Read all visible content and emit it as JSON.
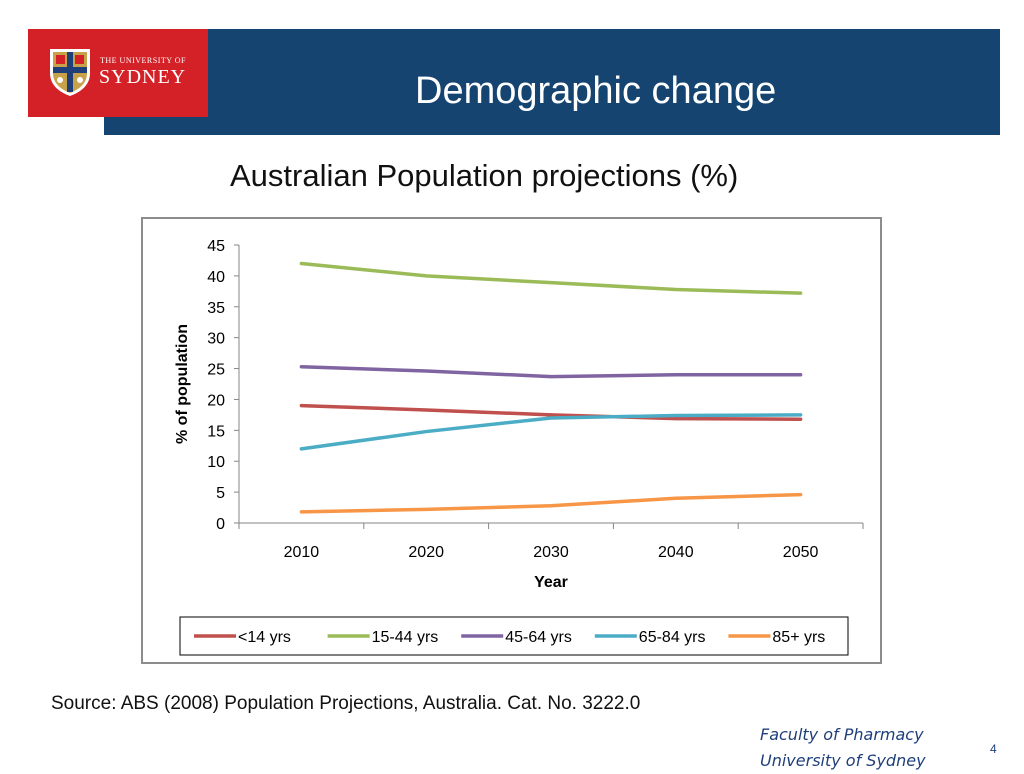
{
  "header": {
    "logo_small": "THE UNIVERSITY OF",
    "logo_big": "SYDNEY",
    "title": "Demographic change"
  },
  "chart_heading": "Australian Population projections (%)",
  "chart_data": {
    "type": "line",
    "title": "",
    "xlabel": "Year",
    "ylabel": "% of population",
    "x": [
      "2010",
      "2020",
      "2030",
      "2040",
      "2050"
    ],
    "ylim": [
      0,
      45
    ],
    "yticks": [
      0,
      5,
      10,
      15,
      20,
      25,
      30,
      35,
      40,
      45
    ],
    "grid": false,
    "legend": "bottom",
    "series": [
      {
        "name": "<14 yrs",
        "color": "#c0504d",
        "values": [
          19.0,
          18.3,
          17.5,
          16.9,
          16.8
        ]
      },
      {
        "name": "15-44 yrs",
        "color": "#9bbb59",
        "values": [
          42.0,
          40.0,
          38.9,
          37.8,
          37.2
        ]
      },
      {
        "name": "45-64 yrs",
        "color": "#8064a2",
        "values": [
          25.3,
          24.6,
          23.7,
          24.0,
          24.0
        ]
      },
      {
        "name": "65-84 yrs",
        "color": "#4bacc6",
        "values": [
          12.0,
          14.8,
          17.0,
          17.4,
          17.5
        ]
      },
      {
        "name": "85+ yrs",
        "color": "#f79646",
        "values": [
          1.8,
          2.2,
          2.8,
          4.0,
          4.6
        ]
      }
    ]
  },
  "source": "Source: ABS (2008) Population Projections, Australia. Cat. No. 3222.0",
  "footer": {
    "faculty_line1": "Faculty of Pharmacy",
    "faculty_line2": "University of Sydney",
    "slide_number": "4"
  }
}
